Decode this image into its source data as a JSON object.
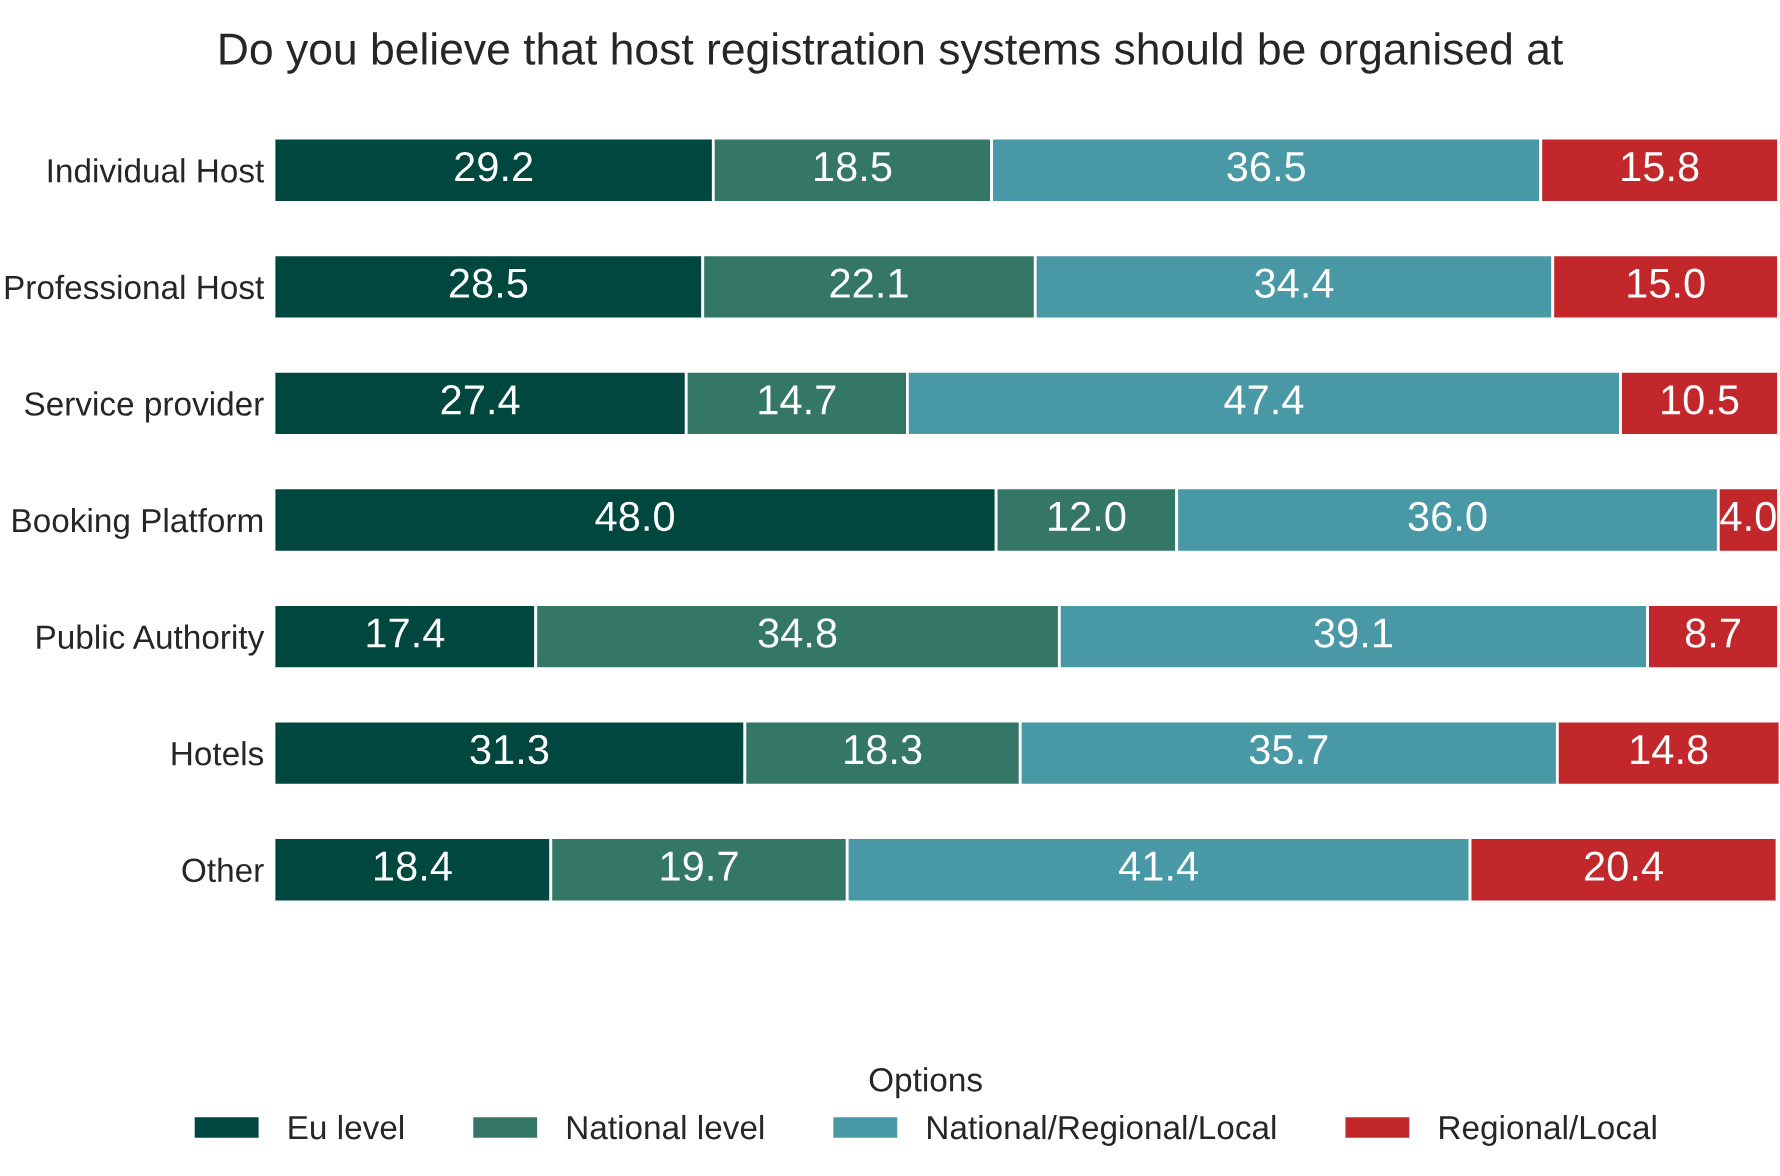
{
  "chart_data": {
    "type": "bar",
    "orientation": "horizontal",
    "stacked": true,
    "title": "Do you believe that host registration systems should be organised at",
    "categories": [
      "Individual Host",
      "Professional Host",
      "Service provider",
      "Booking Platform",
      "Public Authority",
      "Hotels",
      "Other"
    ],
    "series": [
      {
        "name": "Eu level",
        "color": "#00473f",
        "values": [
          29.2,
          28.5,
          27.4,
          48.0,
          17.4,
          31.3,
          18.4
        ],
        "value_labels": [
          "29.2",
          "28.5",
          "27.4",
          "48.0",
          "17.4",
          "31.3",
          "18.4"
        ]
      },
      {
        "name": "National level",
        "color": "#357766",
        "values": [
          18.5,
          22.1,
          14.7,
          12.0,
          34.8,
          18.3,
          19.7
        ],
        "value_labels": [
          "18.5",
          "22.1",
          "14.7",
          "12.0",
          "34.8",
          "18.3",
          "19.7"
        ]
      },
      {
        "name": "National/Regional/Local",
        "color": "#4898a6",
        "values": [
          36.5,
          34.4,
          47.4,
          36.0,
          39.1,
          35.7,
          41.4
        ],
        "value_labels": [
          "36.5",
          "34.4",
          "47.4",
          "36.0",
          "39.1",
          "35.7",
          "41.4"
        ]
      },
      {
        "name": "Regional/Local",
        "color": "#c1272b",
        "values": [
          15.8,
          15.0,
          10.5,
          4.0,
          8.7,
          14.8,
          20.4
        ],
        "value_labels": [
          "15.8",
          "15.0",
          "10.5",
          "4.0",
          "8.7",
          "14.8",
          "20.4"
        ]
      }
    ],
    "legend": "bottom",
    "legend_title": "Options",
    "grid": false
  }
}
